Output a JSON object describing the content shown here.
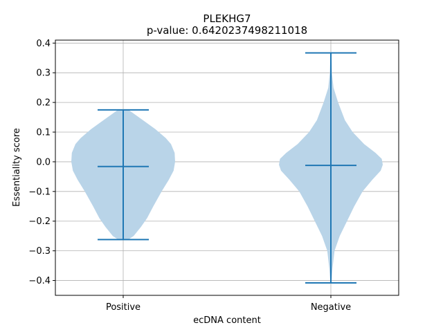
{
  "chart_data": {
    "type": "violin",
    "title": "PLEKHG7",
    "subtitle": "p-value: 0.6420237498211018",
    "xlabel": "ecDNA content",
    "ylabel": "Essentiality score",
    "categories": [
      "Positive",
      "Negative"
    ],
    "ylim": [
      -0.45,
      0.41
    ],
    "yticks": [
      -0.4,
      -0.3,
      -0.2,
      -0.1,
      0.0,
      0.1,
      0.2,
      0.3,
      0.4
    ],
    "ytick_labels": [
      "−0.4",
      "−0.3",
      "−0.2",
      "−0.1",
      "0.0",
      "0.1",
      "0.2",
      "0.3",
      "0.4"
    ],
    "grid": true,
    "colors": {
      "body": "#b9d4e8",
      "lines": "#1f77b4",
      "grid": "#b0b0b0"
    },
    "violins": [
      {
        "category": "Positive",
        "min": -0.262,
        "max": 0.175,
        "median": -0.016,
        "profile": [
          [
            -0.262,
            0.1
          ],
          [
            -0.25,
            0.2
          ],
          [
            -0.22,
            0.34
          ],
          [
            -0.19,
            0.46
          ],
          [
            -0.15,
            0.58
          ],
          [
            -0.1,
            0.74
          ],
          [
            -0.06,
            0.88
          ],
          [
            -0.03,
            0.97
          ],
          [
            0.0,
            1.0
          ],
          [
            0.03,
            0.99
          ],
          [
            0.06,
            0.92
          ],
          [
            0.08,
            0.82
          ],
          [
            0.11,
            0.62
          ],
          [
            0.14,
            0.38
          ],
          [
            0.175,
            0.1
          ]
        ]
      },
      {
        "category": "Negative",
        "min": -0.408,
        "max": 0.367,
        "median": -0.012,
        "profile": [
          [
            -0.408,
            0.01
          ],
          [
            -0.36,
            0.03
          ],
          [
            -0.3,
            0.07
          ],
          [
            -0.25,
            0.17
          ],
          [
            -0.2,
            0.31
          ],
          [
            -0.15,
            0.45
          ],
          [
            -0.1,
            0.61
          ],
          [
            -0.06,
            0.8
          ],
          [
            -0.03,
            0.96
          ],
          [
            -0.01,
            1.0
          ],
          [
            0.01,
            0.98
          ],
          [
            0.03,
            0.86
          ],
          [
            0.06,
            0.64
          ],
          [
            0.1,
            0.42
          ],
          [
            0.14,
            0.27
          ],
          [
            0.2,
            0.14
          ],
          [
            0.25,
            0.05
          ],
          [
            0.3,
            0.02
          ],
          [
            0.367,
            0.01
          ]
        ]
      }
    ]
  }
}
